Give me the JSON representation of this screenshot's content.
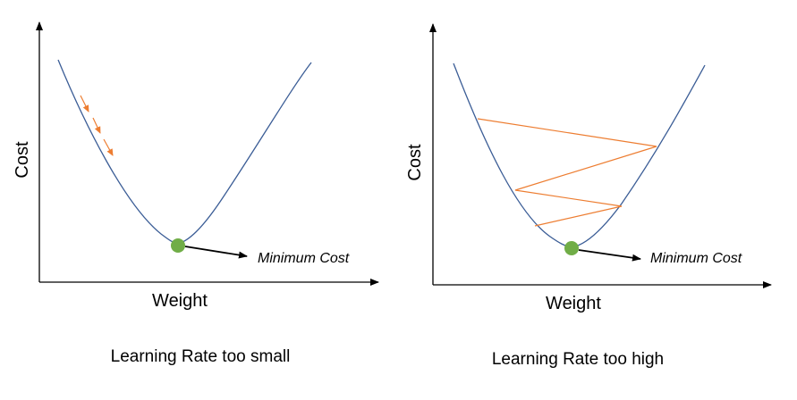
{
  "colors": {
    "curve": "#3b5d96",
    "steps": "#ed7d31",
    "minimum_dot": "#70ad47",
    "axes": "#000000"
  },
  "left_panel": {
    "y_axis_label": "Cost",
    "x_axis_label": "Weight",
    "minimum_label": "Minimum Cost",
    "caption": "Learning Rate too small"
  },
  "right_panel": {
    "y_axis_label": "Cost",
    "x_axis_label": "Weight",
    "minimum_label": "Minimum Cost",
    "caption": "Learning Rate too high"
  }
}
